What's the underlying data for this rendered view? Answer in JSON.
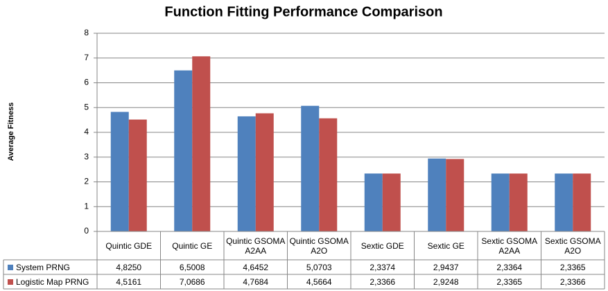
{
  "chart_data": {
    "type": "bar",
    "title": "Function Fitting Performance Comparison",
    "y_label": "Average Fitness",
    "categories": [
      "Quintic GDE",
      "Quintic GE",
      "Quintic GSOMA A2AA",
      "Quintic GSOMA A2O",
      "Sextic GDE",
      "Sextic GE",
      "Sextic GSOMA A2AA",
      "Sextic GSOMA A2O"
    ],
    "series": [
      {
        "name": "System PRNG",
        "color": "#4f81bd",
        "values": [
          4.825,
          6.5008,
          4.6452,
          5.0703,
          2.3374,
          2.9437,
          2.3364,
          2.3365
        ],
        "value_labels": [
          "4,8250",
          "6,5008",
          "4,6452",
          "5,0703",
          "2,3374",
          "2,9437",
          "2,3364",
          "2,3365"
        ]
      },
      {
        "name": "Logistic Map PRNG",
        "color": "#c0504d",
        "values": [
          4.5161,
          7.0686,
          4.7684,
          4.5664,
          2.3366,
          2.9248,
          2.3365,
          2.3366
        ],
        "value_labels": [
          "4,5161",
          "7,0686",
          "4,7684",
          "4,5664",
          "2,3366",
          "2,9248",
          "2,3365",
          "2,3366"
        ]
      }
    ],
    "ylim": [
      0,
      8
    ],
    "yticks": [
      0,
      1,
      2,
      3,
      4,
      5,
      6,
      7,
      8
    ],
    "grid": true
  }
}
